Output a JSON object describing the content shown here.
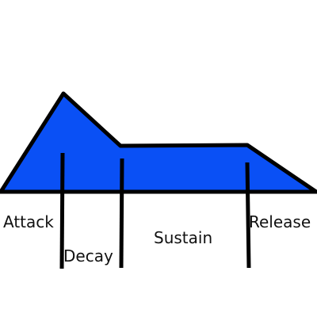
{
  "diagram": {
    "type": "adsr-envelope",
    "colors": {
      "fill": "#0a50f5",
      "stroke": "#000000",
      "background": "#ffffff"
    },
    "stages": [
      {
        "key": "attack",
        "label": "Attack"
      },
      {
        "key": "decay",
        "label": "Decay"
      },
      {
        "key": "sustain",
        "label": "Sustain"
      },
      {
        "key": "release",
        "label": "Release"
      }
    ]
  }
}
